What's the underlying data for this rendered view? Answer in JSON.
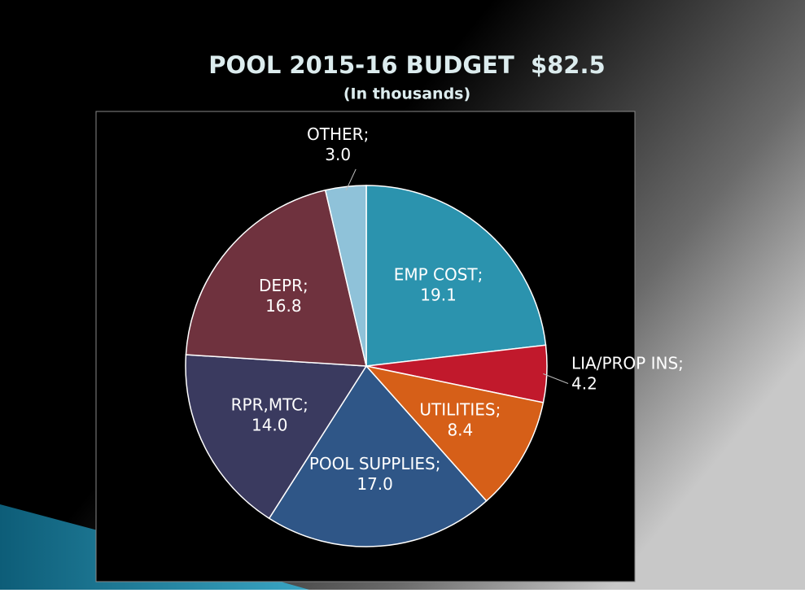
{
  "chart_data": {
    "type": "pie",
    "title": "POOL 2015-16 BUDGET  $82.5",
    "subtitle": "(In thousands)",
    "categories": [
      "EMP COST",
      "LIA/PROP INS",
      "UTILITIES",
      "POOL SUPPLIES",
      "RPR,MTC",
      "DEPR",
      "OTHER"
    ],
    "values": [
      19.1,
      4.2,
      8.4,
      17.0,
      14.0,
      16.8,
      3.0
    ],
    "value_labels": [
      "19.1",
      "4.2",
      "8.4",
      "17.0",
      "14.0",
      "16.8",
      "3.0"
    ],
    "label_separator": ";",
    "colors": [
      "#2b93ae",
      "#c1192c",
      "#d65f18",
      "#2f5687",
      "#3a3a5f",
      "#6f323e",
      "#8fc2d9"
    ]
  }
}
